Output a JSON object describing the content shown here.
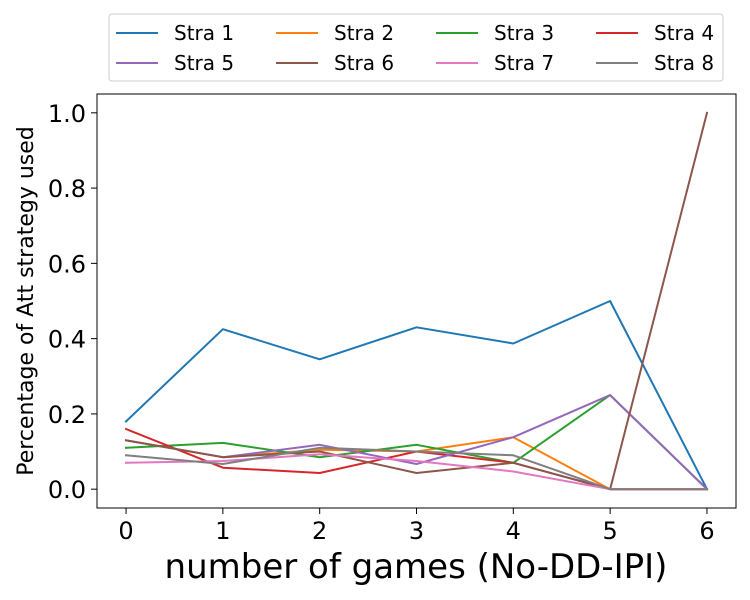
{
  "chart_data": {
    "type": "line",
    "xlabel": "number of games (No-DD-IPI)",
    "ylabel": "Percentage of Att strategy used",
    "x": [
      0,
      1,
      2,
      3,
      4,
      5,
      6
    ],
    "xticks": [
      "0",
      "1",
      "2",
      "3",
      "4",
      "5",
      "6"
    ],
    "yticks": [
      "0.0",
      "0.2",
      "0.4",
      "0.6",
      "0.8",
      "1.0"
    ],
    "xlim": [
      -0.3,
      6.3
    ],
    "ylim": [
      -0.05,
      1.05
    ],
    "grid": false,
    "legend_position": "top, outside plot, 4 columns",
    "series": [
      {
        "name": "Stra 1",
        "color": "#1f77b4",
        "values": [
          0.18,
          0.425,
          0.345,
          0.43,
          0.387,
          0.5,
          0.0
        ]
      },
      {
        "name": "Stra 2",
        "color": "#ff7f0e",
        "values": [
          0.13,
          0.085,
          0.105,
          0.1,
          0.138,
          0.0,
          0.0
        ]
      },
      {
        "name": "Stra 3",
        "color": "#2ca02c",
        "values": [
          0.11,
          0.123,
          0.085,
          0.118,
          0.07,
          0.25,
          0.0
        ]
      },
      {
        "name": "Stra 4",
        "color": "#d62728",
        "values": [
          0.16,
          0.057,
          0.043,
          0.1,
          0.07,
          0.0,
          0.0
        ]
      },
      {
        "name": "Stra 5",
        "color": "#9467bd",
        "values": [
          0.13,
          0.085,
          0.118,
          0.067,
          0.138,
          0.25,
          0.0
        ]
      },
      {
        "name": "Stra 6",
        "color": "#8c564b",
        "values": [
          0.13,
          0.085,
          0.1,
          0.043,
          0.07,
          0.0,
          1.0
        ]
      },
      {
        "name": "Stra 7",
        "color": "#e377c2",
        "values": [
          0.07,
          0.075,
          0.093,
          0.075,
          0.047,
          0.0,
          0.0
        ]
      },
      {
        "name": "Stra 8",
        "color": "#7f7f7f",
        "values": [
          0.09,
          0.067,
          0.11,
          0.1,
          0.09,
          0.0,
          0.0
        ]
      }
    ]
  }
}
